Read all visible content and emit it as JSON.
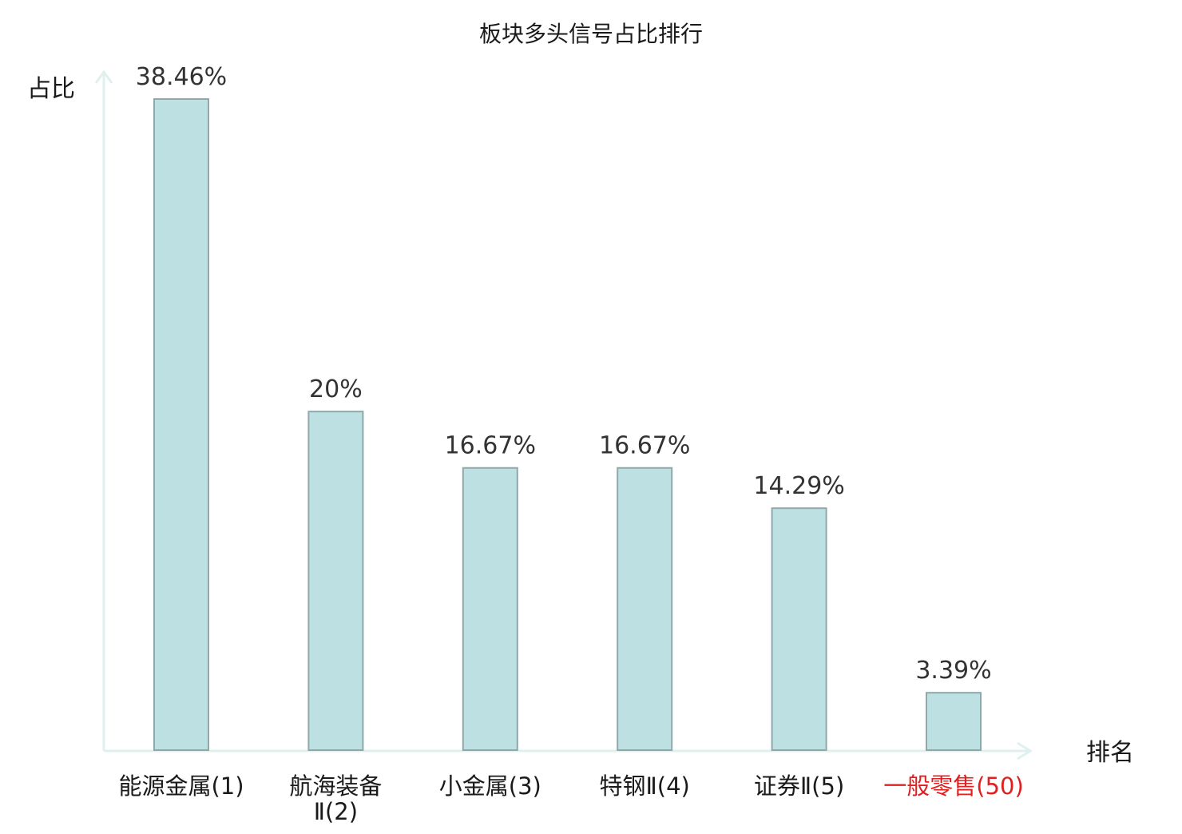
{
  "chart_data": {
    "type": "bar",
    "title": "板块多头信号占比排行",
    "xlabel": "排名",
    "ylabel": "占比",
    "categories": [
      [
        "能源金属(1)"
      ],
      [
        "航海装备",
        "Ⅱ(2)"
      ],
      [
        "小金属(3)"
      ],
      [
        "特钢Ⅱ(4)"
      ],
      [
        "证券Ⅱ(5)"
      ],
      [
        "一般零售(50)"
      ]
    ],
    "values": [
      38.46,
      20,
      16.67,
      16.67,
      14.29,
      3.39
    ],
    "value_labels": [
      "38.46%",
      "20%",
      "16.67%",
      "16.67%",
      "14.29%",
      "3.39%"
    ],
    "highlight_index": 5,
    "ylim": [
      0,
      38.46
    ],
    "grid": false,
    "legend": "none"
  },
  "colors": {
    "bar_fill": "#bde0e3",
    "bar_stroke": "#8fa9ab",
    "axis": "#dff0ee",
    "highlight_text": "#e02020"
  }
}
